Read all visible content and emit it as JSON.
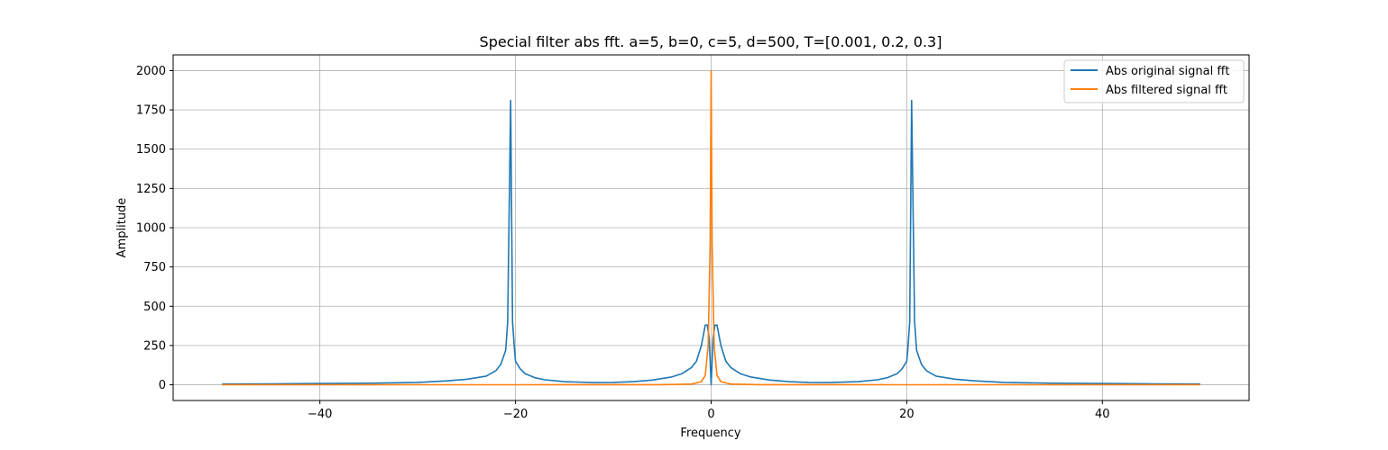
{
  "chart_data": {
    "type": "line",
    "title": "Special filter abs fft. a=5, b=0, c=5, d=500, T=[0.001, 0.2, 0.3]",
    "xlabel": "Frequency",
    "ylabel": "Amplitude",
    "xlim": [
      -55,
      55
    ],
    "ylim": [
      -100,
      2100
    ],
    "xticks": [
      -40,
      -20,
      0,
      20,
      40
    ],
    "xtick_labels": [
      "−40",
      "−20",
      "0",
      "20",
      "40"
    ],
    "yticks": [
      0,
      250,
      500,
      750,
      1000,
      1250,
      1500,
      1750,
      2000
    ],
    "ytick_labels": [
      "0",
      "250",
      "500",
      "750",
      "1000",
      "1250",
      "1500",
      "1750",
      "2000"
    ],
    "grid": true,
    "legend_position": "top-right",
    "series": [
      {
        "name": "Abs original signal fft",
        "color": "#1f77b4",
        "x": [
          -50,
          -45,
          -40,
          -35,
          -30,
          -27,
          -25,
          -23,
          -22,
          -21.5,
          -21,
          -20.8,
          -20.5,
          -20.3,
          -20.1,
          -20,
          -19.5,
          -19,
          -18,
          -17,
          -15,
          -12,
          -10,
          -8,
          -6,
          -4,
          -3,
          -2,
          -1.5,
          -1,
          -0.6,
          -0.4,
          -0.2,
          0,
          0.2,
          0.4,
          0.6,
          1,
          1.5,
          2,
          3,
          4,
          6,
          8,
          10,
          12,
          15,
          17,
          18,
          19,
          19.5,
          20,
          20.1,
          20.3,
          20.5,
          20.8,
          21,
          21.5,
          22,
          23,
          25,
          27,
          30,
          35,
          40,
          45,
          50
        ],
        "values": [
          5,
          6,
          8,
          10,
          15,
          25,
          35,
          55,
          90,
          130,
          220,
          400,
          1810,
          400,
          220,
          150,
          100,
          70,
          45,
          32,
          20,
          14,
          15,
          20,
          30,
          50,
          70,
          110,
          150,
          250,
          380,
          380,
          300,
          0,
          300,
          380,
          380,
          250,
          150,
          110,
          70,
          50,
          30,
          20,
          15,
          14,
          20,
          32,
          45,
          70,
          100,
          150,
          220,
          400,
          1810,
          400,
          220,
          130,
          90,
          55,
          35,
          25,
          15,
          10,
          8,
          6,
          5
        ]
      },
      {
        "name": "Abs filtered signal fft",
        "color": "#ff7f0e",
        "x": [
          -50,
          -20,
          -5,
          -2,
          -1,
          -0.6,
          -0.3,
          -0.1,
          0,
          0.1,
          0.3,
          0.6,
          1,
          2,
          5,
          20,
          50
        ],
        "values": [
          0,
          0,
          1,
          5,
          20,
          60,
          250,
          900,
          2000,
          900,
          250,
          60,
          20,
          5,
          1,
          0,
          0
        ]
      }
    ]
  }
}
